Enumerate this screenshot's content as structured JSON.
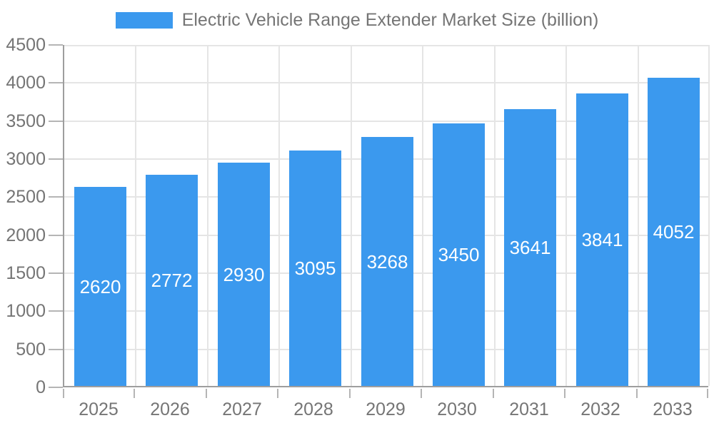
{
  "legend": {
    "label": "Electric Vehicle Range Extender Market Size (billion)"
  },
  "colors": {
    "bar": "#3B99EE",
    "axis_line": "#9E9E9E",
    "tick": "#B5B5B5",
    "gridline": "#E5E5E5",
    "axis_text": "#757575",
    "bar_label_text": "#FFFFFF",
    "background": "#FFFFFF"
  },
  "chart_data": {
    "type": "bar",
    "title": "Electric Vehicle Range Extender Market Size (billion)",
    "categories": [
      "2025",
      "2026",
      "2027",
      "2028",
      "2029",
      "2030",
      "2031",
      "2032",
      "2033"
    ],
    "values": [
      2620,
      2772,
      2930,
      3095,
      3268,
      3450,
      3641,
      3841,
      4052
    ],
    "value_labels": [
      "2620",
      "2772",
      "2930",
      "3095",
      "3268",
      "3450",
      "3641",
      "3841",
      "4052"
    ],
    "xlabel": "",
    "ylabel": "",
    "ylim": [
      0,
      4500
    ],
    "ytick_step": 500,
    "yticks": [
      0,
      500,
      1000,
      1500,
      2000,
      2500,
      3000,
      3500,
      4000,
      4500
    ],
    "grid": true,
    "legend_position": "top",
    "value_label_position": "center-of-bar"
  }
}
